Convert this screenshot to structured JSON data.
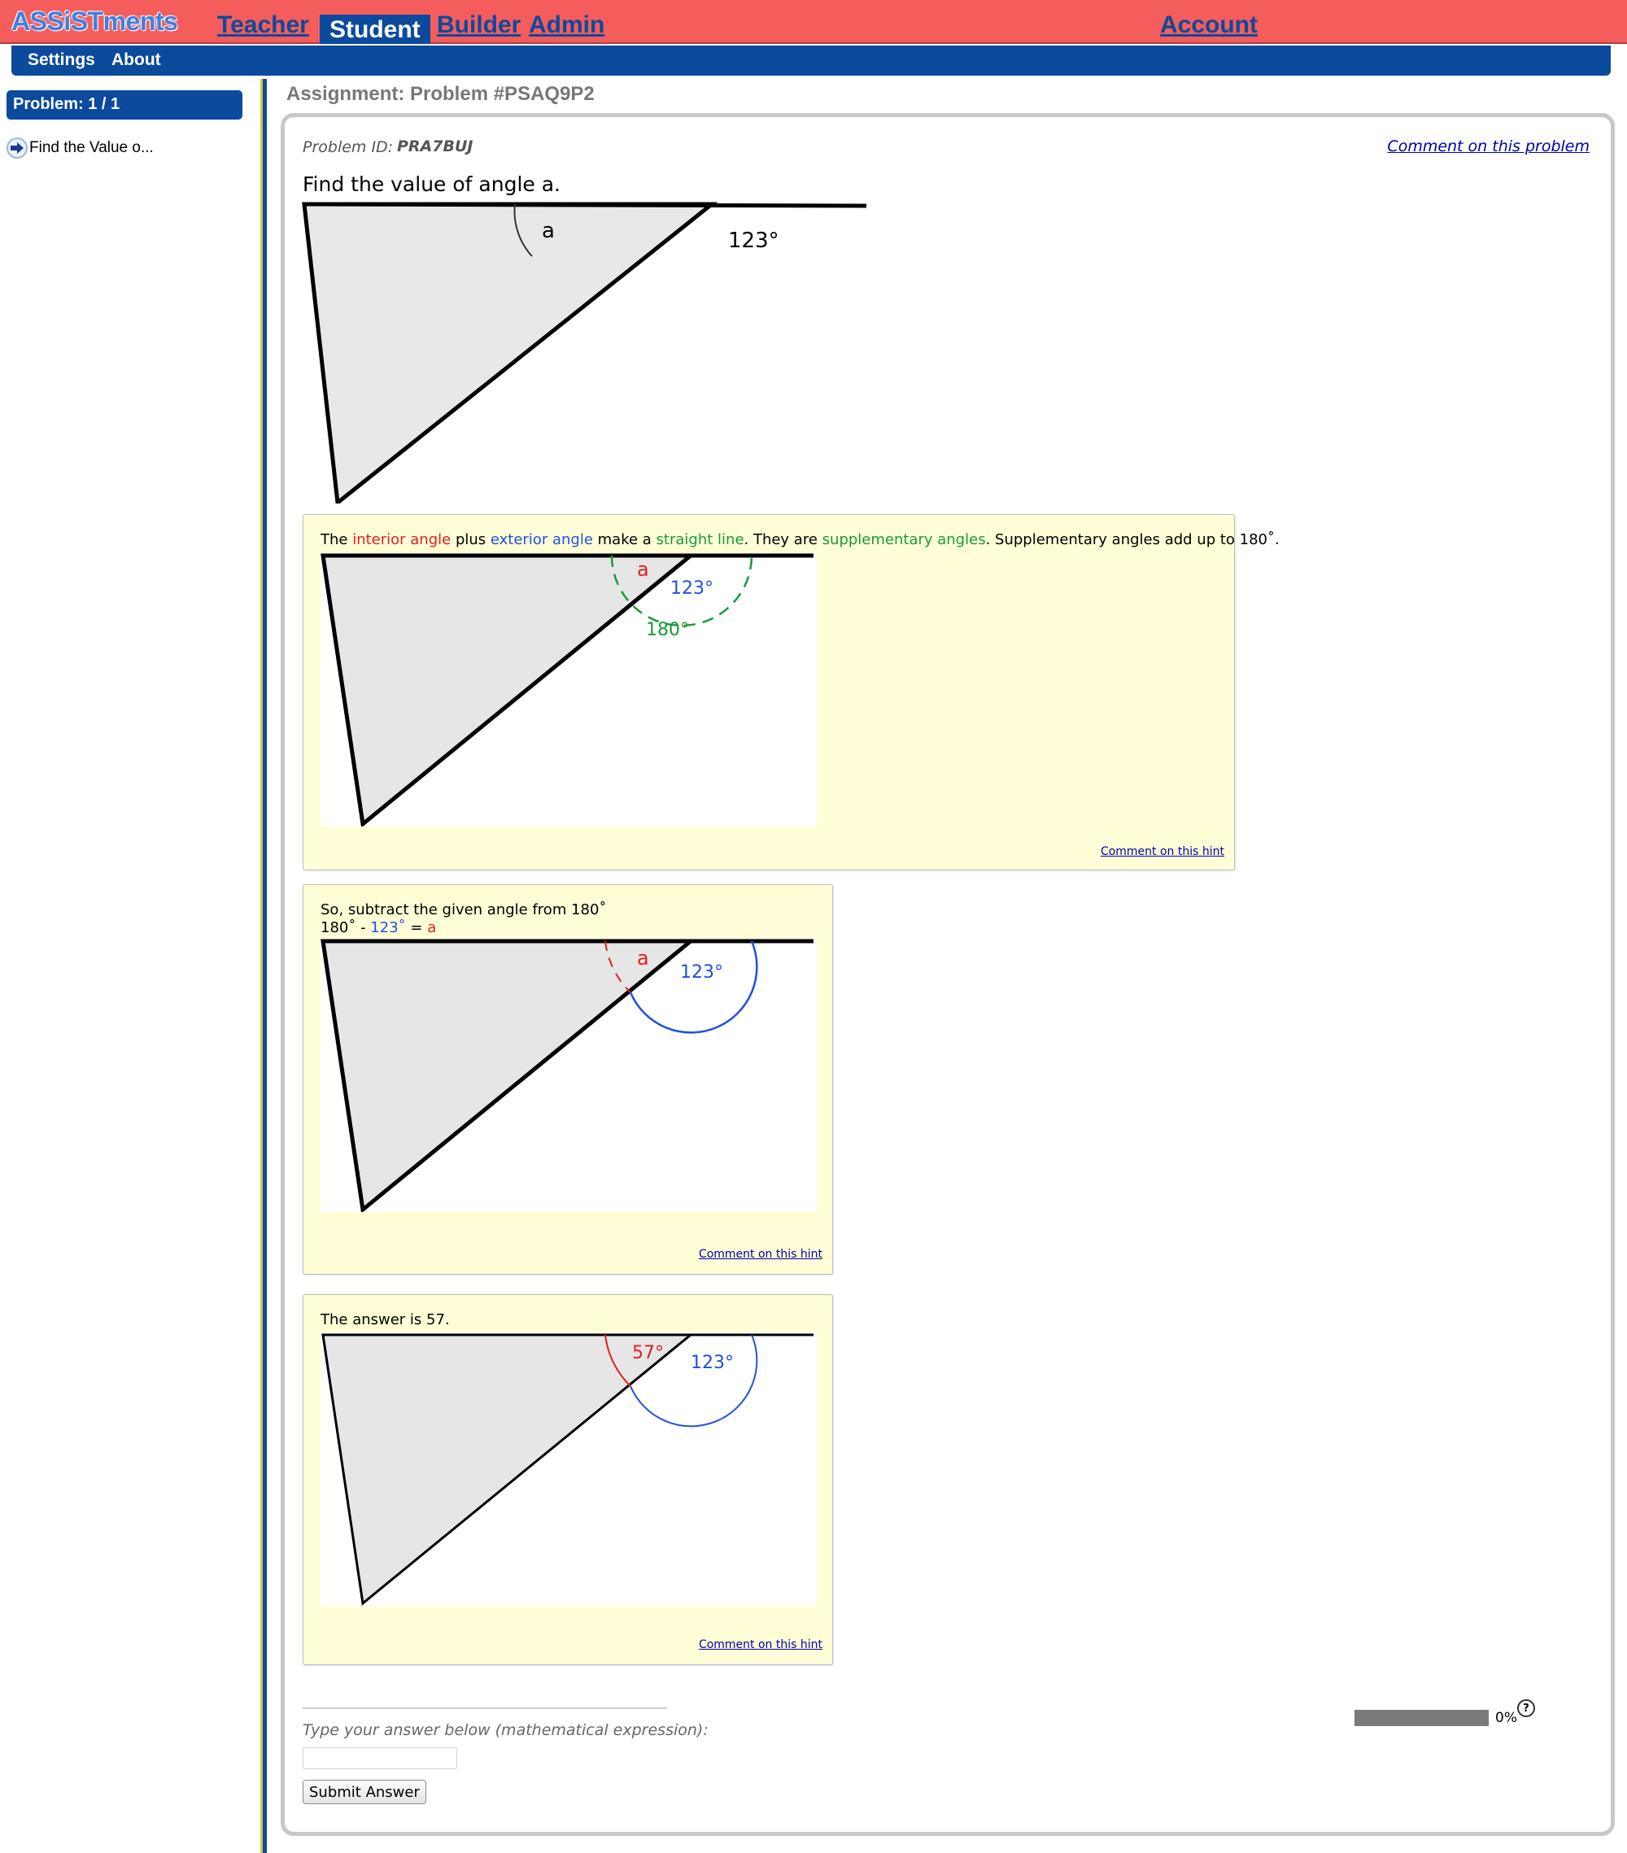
{
  "app": {
    "logo": "ASSiSTments",
    "nav": {
      "teacher": "Teacher",
      "student": "Student",
      "builder": "Builder",
      "admin": "Admin",
      "account": "Account"
    },
    "subnav": {
      "settings": "Settings",
      "about": "About"
    }
  },
  "sidebar": {
    "problem_counter": "Problem: 1 / 1",
    "problem_link": "Find the Value o..."
  },
  "assignment": {
    "title": "Assignment: Problem #PSAQ9P2"
  },
  "problem": {
    "id_label": "Problem ID:",
    "id_value": "PRA7BUJ",
    "comment_label": "Comment on this problem",
    "question": "Find the value of angle a.",
    "figure": {
      "angle_label": "a",
      "exterior_label": "123°"
    }
  },
  "hints": [
    {
      "segments": {
        "s1": "The ",
        "s2": "interior angle",
        "s3": " plus ",
        "s4": "exterior angle",
        "s5": " make a ",
        "s6": "straight line",
        "s7": ". They are ",
        "s8": "supplementary angles",
        "s9": ". Supplementary angles add up to 180˚."
      },
      "figure": {
        "a": "a",
        "ext": "123°",
        "straight": "180°"
      },
      "comment": "Comment on this hint"
    },
    {
      "line1": "So, subtract the given angle from 180˚",
      "line2": {
        "p1": "180˚ - ",
        "p2": "123˚",
        "p3": " = ",
        "p4": "a"
      },
      "figure": {
        "a": "a",
        "ext": "123°"
      },
      "comment": "Comment on this hint"
    },
    {
      "text": "The answer is 57.",
      "figure": {
        "interior": "57°",
        "ext": "123°"
      },
      "comment": "Comment on this hint"
    }
  ],
  "answer": {
    "prompt": "Type your answer below (mathematical expression):",
    "value": "",
    "submit_label": "Submit Answer"
  },
  "progress": {
    "percent": 0,
    "label": "0%",
    "help_icon": "?"
  },
  "colors": {
    "topbar": "#f55c5c",
    "navy": "#0b4a9c",
    "hint_bg": "#fffed7",
    "interior_red": "#e0201c",
    "exterior_blue": "#2050e0",
    "straight_green": "#1a9a3a"
  }
}
